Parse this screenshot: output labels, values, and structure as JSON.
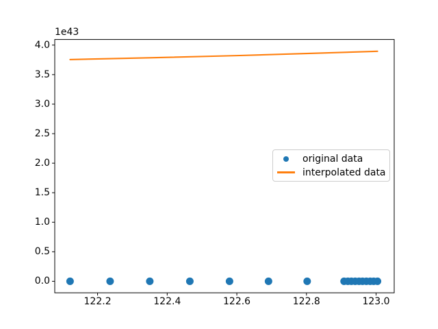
{
  "figure": {
    "background": "#ffffff"
  },
  "chart_data": {
    "type": "scatter",
    "title": "",
    "xlabel": "",
    "ylabel": "",
    "y_offset_text": "1e43",
    "y_scale": "values shown in units of 1e43",
    "xlim": [
      122.077,
      123.052
    ],
    "ylim": [
      -0.195,
      4.095
    ],
    "grid": false,
    "frame_color": "#000000",
    "xticks": [
      122.2,
      122.4,
      122.6,
      122.8,
      123.0
    ],
    "xtick_labels": [
      "122.2",
      "122.4",
      "122.6",
      "122.8",
      "123.0"
    ],
    "yticks": [
      0.0,
      0.5,
      1.0,
      1.5,
      2.0,
      2.5,
      3.0,
      3.5,
      4.0
    ],
    "ytick_labels": [
      "0.0",
      "0.5",
      "1.0",
      "1.5",
      "2.0",
      "2.5",
      "3.0",
      "3.5",
      "4.0"
    ],
    "legend_location": "center right",
    "series": [
      {
        "name": "original data",
        "type": "scatter",
        "color": "#1f77b4",
        "marker": "circle",
        "x": [
          122.121,
          122.236,
          122.35,
          122.465,
          122.579,
          122.691,
          122.802,
          122.908,
          122.919,
          122.929,
          122.94,
          122.951,
          122.961,
          122.972,
          122.983,
          122.993,
          123.004
        ],
        "y": [
          0,
          0,
          0,
          0,
          0,
          0,
          0,
          0,
          0,
          0,
          0,
          0,
          0,
          0,
          0,
          0,
          0
        ]
      },
      {
        "name": "interpolated data",
        "type": "line",
        "color": "#ff7f0e",
        "x": [
          122.121,
          122.35,
          122.6,
          122.8,
          123.004
        ],
        "y": [
          3.755,
          3.785,
          3.822,
          3.858,
          3.895
        ]
      }
    ]
  }
}
